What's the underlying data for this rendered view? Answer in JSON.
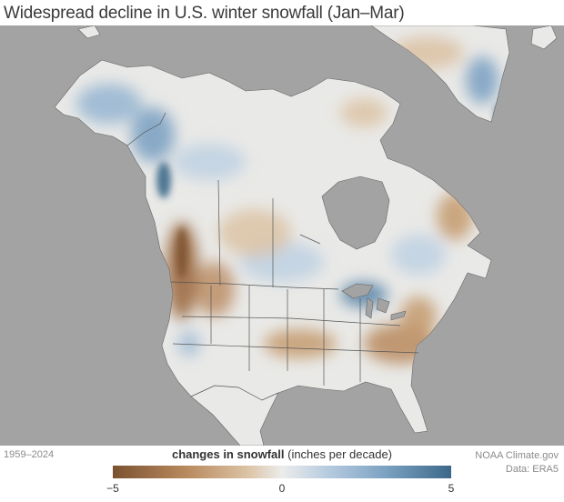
{
  "title": "Widespread decline in U.S. winter snowfall (Jan–Mar)",
  "period": "1959–2024",
  "credit": {
    "line1": "NOAA Climate.gov",
    "line2": "Data: ERA5"
  },
  "legend": {
    "title_bold": "changes in snowfall",
    "title_rest": " (inches per decade)",
    "ticks": [
      "−5",
      "0",
      "5"
    ],
    "min": -5,
    "max": 5,
    "colors": {
      "decline_strong": "#7b5231",
      "decline": "#c49a6c",
      "neutral": "#ececea",
      "increase": "#9ab8d3",
      "increase_strong": "#3b6889"
    }
  },
  "colors": {
    "ocean": "#a3a3a3",
    "land": "#e9e9e7",
    "border": "#555555"
  }
}
